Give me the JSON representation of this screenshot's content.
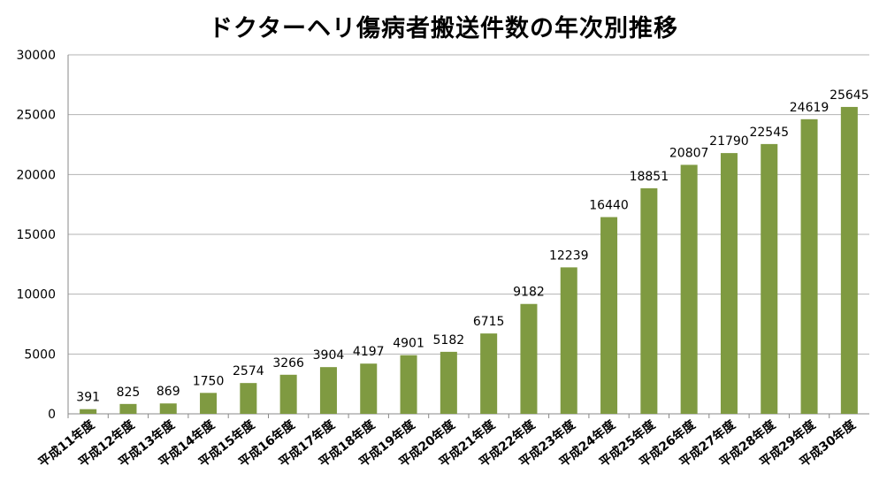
{
  "chart_data": {
    "type": "bar",
    "title": "ドクターヘリ傷病者搬送件数の年次別推移",
    "categories": [
      "平成11年度",
      "平成12年度",
      "平成13年度",
      "平成14年度",
      "平成15年度",
      "平成16年度",
      "平成17年度",
      "平成18年度",
      "平成19年度",
      "平成20年度",
      "平成21年度",
      "平成22年度",
      "平成23年度",
      "平成24年度",
      "平成25年度",
      "平成26年度",
      "平成27年度",
      "平成28年度",
      "平成29年度",
      "平成30年度"
    ],
    "values": [
      391,
      825,
      869,
      1750,
      2574,
      3266,
      3904,
      4197,
      4901,
      5182,
      6715,
      9182,
      12239,
      16440,
      18851,
      20807,
      21790,
      22545,
      24619,
      25645
    ],
    "ylim": [
      0,
      30000
    ],
    "yticks": [
      0,
      5000,
      10000,
      15000,
      20000,
      25000,
      30000
    ],
    "grid": true,
    "legend": "none",
    "bar_color": "#7f9a41",
    "grid_color": "#b3b3b3"
  }
}
